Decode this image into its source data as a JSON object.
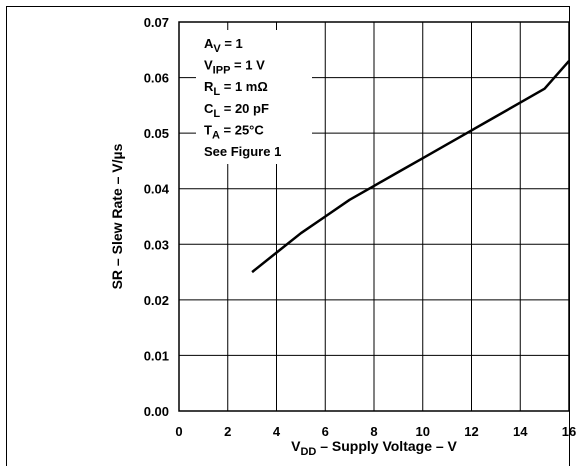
{
  "chart_data": {
    "type": "line",
    "title": "",
    "xlabel": {
      "main": "V",
      "sub": "DD",
      "rest": " – Supply Voltage – V"
    },
    "ylabel": "SR – Slew Rate – V/µs",
    "xlim": [
      0,
      16
    ],
    "ylim": [
      0,
      0.07
    ],
    "grid": true,
    "x_ticks": [
      0,
      2,
      4,
      6,
      8,
      10,
      12,
      14,
      16
    ],
    "x_tick_labels": [
      "0",
      "2",
      "4",
      "6",
      "8",
      "10",
      "12",
      "14",
      "16"
    ],
    "y_ticks": [
      0,
      0.01,
      0.02,
      0.03,
      0.04,
      0.05,
      0.06,
      0.07
    ],
    "y_tick_labels": [
      "0.00",
      "0.01",
      "0.02",
      "0.03",
      "0.04",
      "0.05",
      "0.06",
      "0.07"
    ],
    "series": [
      {
        "x": [
          3,
          4,
          5,
          6,
          7,
          8,
          9,
          10,
          11,
          12,
          13,
          14,
          15,
          16
        ],
        "y": [
          0.025,
          0.0285,
          0.032,
          0.035,
          0.038,
          0.0405,
          0.043,
          0.0455,
          0.048,
          0.0505,
          0.053,
          0.0555,
          0.058,
          0.063
        ]
      }
    ],
    "annotations": [
      {
        "main": "A",
        "sub": "V",
        "rest": " = 1"
      },
      {
        "main": "V",
        "sub": "IPP",
        "rest": " = 1 V"
      },
      {
        "main": "R",
        "sub": "L",
        "rest": " = 1 mΩ"
      },
      {
        "main": "C",
        "sub": "L",
        "rest": " = 20 pF"
      },
      {
        "main": "T",
        "sub": "A",
        "rest": " = 25°C"
      },
      {
        "main": "See Figure 1",
        "sub": "",
        "rest": ""
      }
    ],
    "colors": {
      "line": "#000000",
      "grid": "#000000",
      "background": "#ffffff"
    }
  }
}
